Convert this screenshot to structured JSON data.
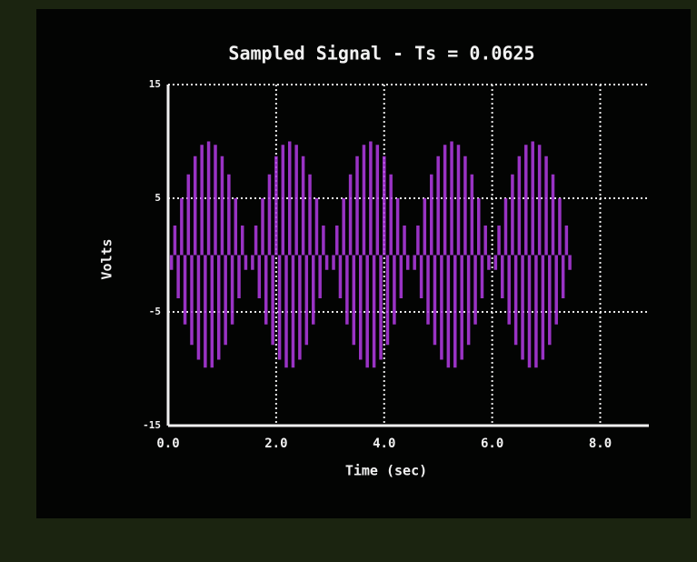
{
  "chart_data": {
    "type": "stem",
    "title": "Sampled Signal - Ts = 0.0625",
    "xlabel": "Time (sec)",
    "ylabel": "Volts",
    "xlim": [
      0,
      8.9
    ],
    "ylim": [
      -15,
      15
    ],
    "xticks": [
      {
        "value": 0,
        "label": "0.0"
      },
      {
        "value": 2,
        "label": "2.0"
      },
      {
        "value": 4,
        "label": "4.0"
      },
      {
        "value": 6,
        "label": "6.0"
      },
      {
        "value": 8,
        "label": "8.0"
      }
    ],
    "yticks": [
      -15,
      -5,
      5,
      15
    ],
    "grid": true,
    "color": "#b43ce6",
    "x": [
      0,
      0.0625,
      0.125,
      0.1875,
      0.25,
      0.3125,
      0.375,
      0.4375,
      0.5,
      0.5625,
      0.625,
      0.6875,
      0.75,
      0.8125,
      0.875,
      0.9375,
      1,
      1.0625,
      1.125,
      1.1875,
      1.25,
      1.3125,
      1.375,
      1.4375,
      1.5,
      1.5625,
      1.625,
      1.6875,
      1.75,
      1.8125,
      1.875,
      1.9375,
      2,
      2.0625,
      2.125,
      2.1875,
      2.25,
      2.3125,
      2.375,
      2.4375,
      2.5,
      2.5625,
      2.625,
      2.6875,
      2.75,
      2.8125,
      2.875,
      2.9375,
      3,
      3.0625,
      3.125,
      3.1875,
      3.25,
      3.3125,
      3.375,
      3.4375,
      3.5,
      3.5625,
      3.625,
      3.6875,
      3.75,
      3.8125,
      3.875,
      3.9375,
      4,
      4.0625,
      4.125,
      4.1875,
      4.25,
      4.3125,
      4.375,
      4.4375,
      4.5,
      4.5625,
      4.625,
      4.6875,
      4.75,
      4.8125,
      4.875,
      4.9375,
      5,
      5.0625,
      5.125,
      5.1875,
      5.25,
      5.3125,
      5.375,
      5.4375,
      5.5,
      5.5625,
      5.625,
      5.6875,
      5.75,
      5.8125,
      5.875,
      5.9375,
      6,
      6.0625,
      6.125,
      6.1875,
      6.25,
      6.3125,
      6.375,
      6.4375,
      6.5,
      6.5625,
      6.625,
      6.6875,
      6.75,
      6.8125,
      6.875,
      6.9375,
      7,
      7.0625,
      7.125,
      7.1875,
      7.25,
      7.3125,
      7.375,
      7.4375,
      7.5
    ],
    "values": [
      0,
      -1.3,
      2.6,
      -3.8,
      5,
      -6.1,
      7.1,
      -7.9,
      8.7,
      -9.2,
      9.7,
      -9.9,
      10,
      -9.9,
      9.7,
      -9.2,
      8.7,
      -7.9,
      7.1,
      -6.1,
      5,
      -3.8,
      2.6,
      -1.3,
      0,
      -1.3,
      2.6,
      -3.8,
      5,
      -6.1,
      7.1,
      -7.9,
      8.7,
      -9.2,
      9.7,
      -9.9,
      10,
      -9.9,
      9.7,
      -9.2,
      8.7,
      -7.9,
      7.1,
      -6.1,
      5,
      -3.8,
      2.6,
      -1.3,
      0,
      -1.3,
      2.6,
      -3.8,
      5,
      -6.1,
      7.1,
      -7.9,
      8.7,
      -9.2,
      9.7,
      -9.9,
      10,
      -9.9,
      9.7,
      -9.2,
      8.7,
      -7.9,
      7.1,
      -6.1,
      5,
      -3.8,
      2.6,
      -1.3,
      0,
      -1.3,
      2.6,
      -3.8,
      5,
      -6.1,
      7.1,
      -7.9,
      8.7,
      -9.2,
      9.7,
      -9.9,
      10,
      -9.9,
      9.7,
      -9.2,
      8.7,
      -7.9,
      7.1,
      -6.1,
      5,
      -3.8,
      2.6,
      -1.3,
      0,
      -1.3,
      2.6,
      -3.8,
      5,
      -6.1,
      7.1,
      -7.9,
      8.7,
      -9.2,
      9.7,
      -9.9,
      10,
      -9.9,
      9.7,
      -9.2,
      8.7,
      -7.9,
      7.1,
      -6.1,
      5,
      -3.8,
      2.6,
      -1.3,
      0
    ]
  }
}
